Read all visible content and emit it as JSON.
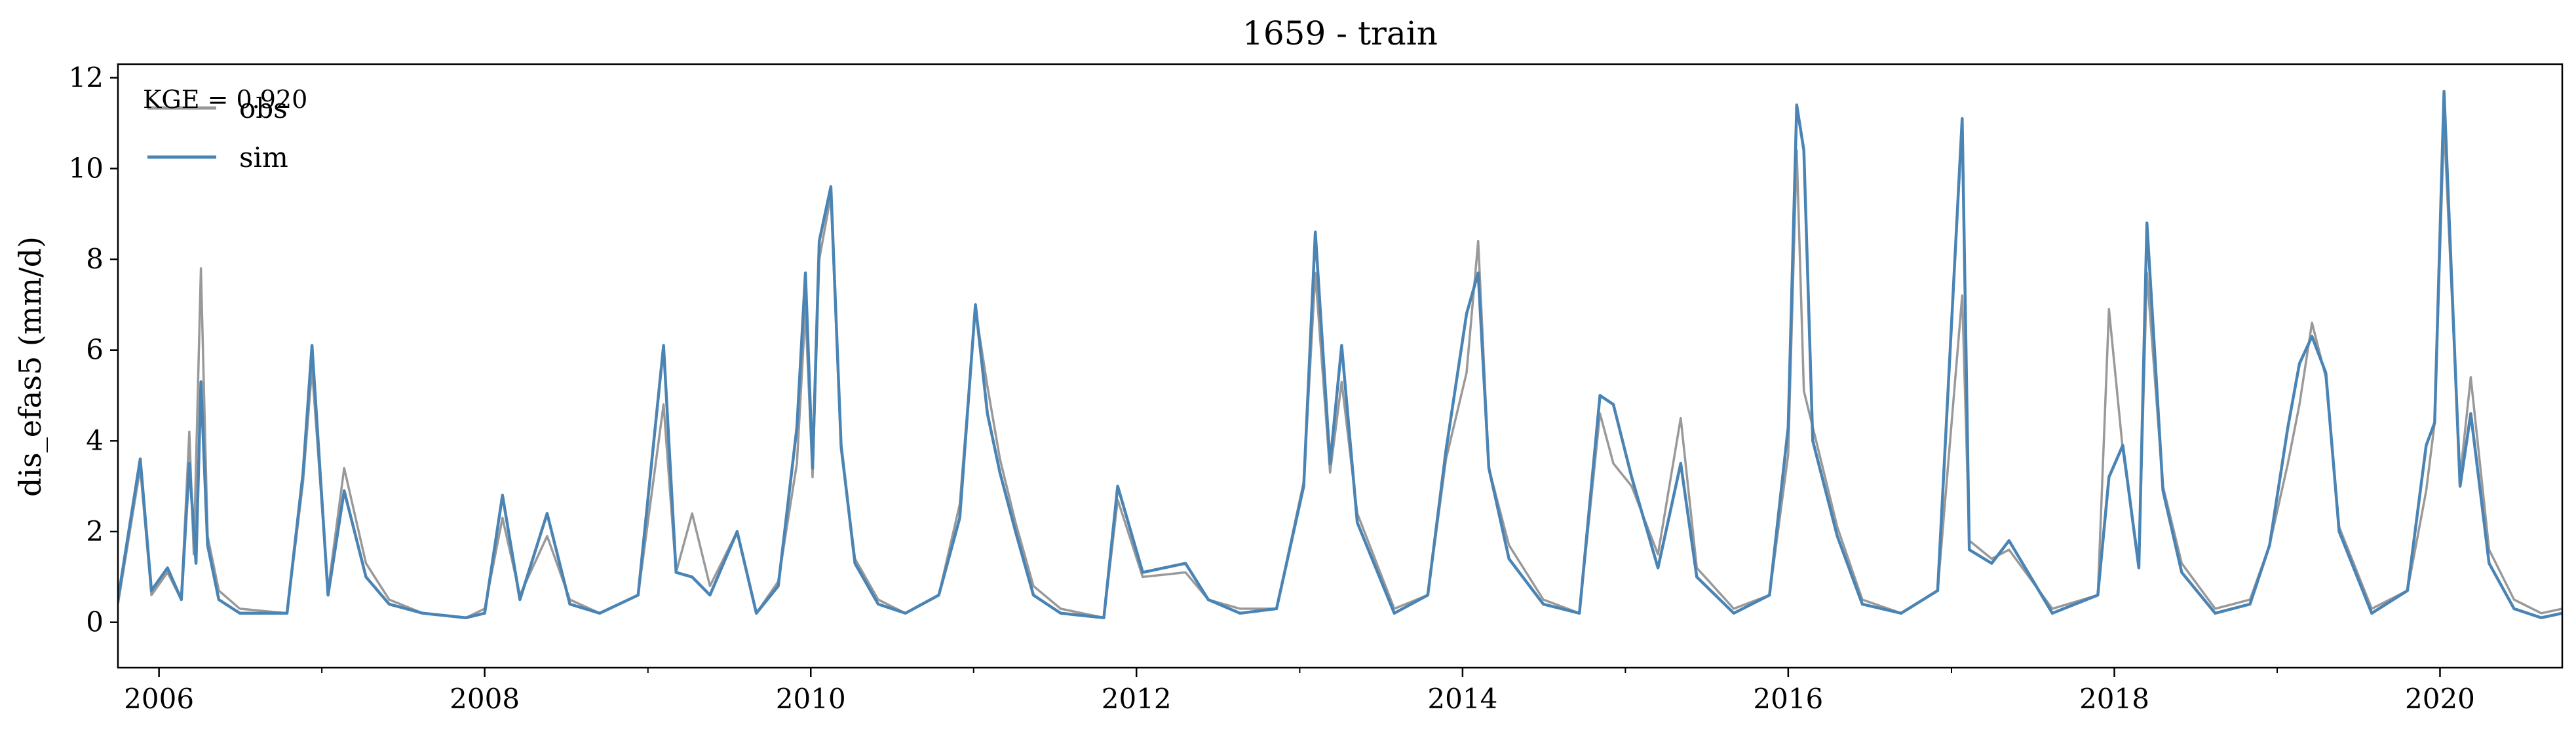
{
  "chart_data": {
    "type": "line",
    "title": "1659 - train",
    "xlabel": "",
    "ylabel": "dis_efas5 (mm/d)",
    "annotation": "KGE = 0.920",
    "xlim": [
      "2005-10-01",
      "2020-10-01"
    ],
    "ylim": [
      -1,
      12.3
    ],
    "x_ticks": [
      "2006",
      "2008",
      "2010",
      "2012",
      "2014",
      "2016",
      "2018",
      "2020"
    ],
    "x_tick_dates": [
      "2006-01-01",
      "2008-01-01",
      "2010-01-01",
      "2012-01-01",
      "2014-01-01",
      "2016-01-01",
      "2018-01-01",
      "2020-01-01"
    ],
    "y_ticks": [
      0,
      2,
      4,
      6,
      8,
      10,
      12
    ],
    "y_tick_labels": [
      "0",
      "2",
      "4",
      "6",
      "8",
      "10",
      "12"
    ],
    "grid": false,
    "legend_position": "top-left",
    "series": [
      {
        "name": "obs",
        "color": "#999999",
        "x": [
          "2005-10-01",
          "2005-11-20",
          "2005-12-15",
          "2006-01-20",
          "2006-02-20",
          "2006-03-10",
          "2006-03-20",
          "2006-04-05",
          "2006-04-20",
          "2006-05-15",
          "2006-07-01",
          "2006-10-15",
          "2006-11-20",
          "2006-12-10",
          "2007-01-15",
          "2007-02-20",
          "2007-04-10",
          "2007-06-01",
          "2007-08-15",
          "2007-11-20",
          "2008-01-01",
          "2008-02-10",
          "2008-03-20",
          "2008-05-20",
          "2008-07-10",
          "2008-09-15",
          "2008-12-10",
          "2009-02-05",
          "2009-03-05",
          "2009-04-10",
          "2009-05-20",
          "2009-07-20",
          "2009-09-01",
          "2009-10-20",
          "2009-12-01",
          "2009-12-20",
          "2010-01-05",
          "2010-01-20",
          "2010-02-15",
          "2010-03-10",
          "2010-04-10",
          "2010-06-01",
          "2010-08-01",
          "2010-10-15",
          "2010-12-01",
          "2011-01-05",
          "2011-02-01",
          "2011-03-01",
          "2011-04-05",
          "2011-05-15",
          "2011-07-15",
          "2011-10-20",
          "2011-11-20",
          "2012-01-15",
          "2012-04-20",
          "2012-06-10",
          "2012-08-20",
          "2012-11-10",
          "2013-01-10",
          "2013-02-05",
          "2013-03-10",
          "2013-04-05",
          "2013-05-10",
          "2013-08-01",
          "2013-10-15",
          "2013-11-25",
          "2014-01-10",
          "2014-02-05",
          "2014-03-01",
          "2014-04-15",
          "2014-07-01",
          "2014-09-20",
          "2014-11-05",
          "2014-12-05",
          "2015-01-15",
          "2015-03-15",
          "2015-05-05",
          "2015-06-10",
          "2015-09-01",
          "2015-11-20",
          "2016-01-01",
          "2016-01-20",
          "2016-02-05",
          "2016-02-25",
          "2016-04-20",
          "2016-06-15",
          "2016-09-10",
          "2016-12-01",
          "2017-01-25",
          "2017-02-10",
          "2017-04-01",
          "2017-05-10",
          "2017-08-15",
          "2017-11-25",
          "2017-12-20",
          "2018-01-20",
          "2018-02-25",
          "2018-03-15",
          "2018-04-20",
          "2018-06-01",
          "2018-08-15",
          "2018-11-01",
          "2018-12-15",
          "2019-01-25",
          "2019-02-20",
          "2019-03-20",
          "2019-04-20",
          "2019-05-20",
          "2019-08-01",
          "2019-10-20",
          "2019-12-01",
          "2019-12-20",
          "2020-01-10",
          "2020-02-15",
          "2020-03-10",
          "2020-04-20",
          "2020-06-15",
          "2020-08-15",
          "2020-10-01"
        ],
        "values": [
          0.4,
          3.4,
          0.6,
          1.1,
          0.5,
          4.2,
          1.5,
          7.8,
          1.9,
          0.7,
          0.3,
          0.2,
          3.1,
          5.6,
          0.7,
          3.4,
          1.3,
          0.5,
          0.2,
          0.1,
          0.3,
          2.3,
          0.6,
          1.9,
          0.5,
          0.2,
          0.6,
          4.8,
          1.1,
          2.4,
          0.8,
          2.0,
          0.2,
          0.9,
          3.5,
          6.9,
          3.2,
          8.0,
          9.4,
          3.8,
          1.4,
          0.5,
          0.2,
          0.6,
          2.6,
          6.9,
          5.2,
          3.6,
          2.2,
          0.8,
          0.3,
          0.1,
          2.7,
          1.0,
          1.1,
          0.5,
          0.3,
          0.3,
          3.1,
          7.7,
          3.3,
          5.3,
          2.4,
          0.3,
          0.6,
          3.6,
          5.5,
          8.4,
          3.4,
          1.7,
          0.5,
          0.2,
          4.6,
          3.5,
          3.0,
          1.5,
          4.5,
          1.2,
          0.3,
          0.6,
          3.7,
          10.4,
          5.1,
          4.3,
          2.1,
          0.5,
          0.2,
          0.7,
          7.2,
          1.8,
          1.4,
          1.6,
          0.3,
          0.6,
          6.9,
          3.8,
          1.3,
          7.7,
          3.0,
          1.3,
          0.3,
          0.5,
          1.7,
          3.5,
          4.8,
          6.6,
          5.4,
          2.1,
          0.3,
          0.7,
          2.9,
          4.4,
          11.0,
          3.2,
          5.4,
          1.6,
          0.5,
          0.2,
          0.3
        ]
      },
      {
        "name": "sim",
        "color": "#4a84b4",
        "x": [
          "2005-10-01",
          "2005-11-20",
          "2005-12-15",
          "2006-01-20",
          "2006-02-20",
          "2006-03-10",
          "2006-03-25",
          "2006-04-05",
          "2006-04-20",
          "2006-05-15",
          "2006-07-01",
          "2006-10-15",
          "2006-11-20",
          "2006-12-10",
          "2007-01-15",
          "2007-02-20",
          "2007-04-10",
          "2007-06-01",
          "2007-08-15",
          "2007-11-20",
          "2008-01-01",
          "2008-02-10",
          "2008-03-20",
          "2008-05-20",
          "2008-07-10",
          "2008-09-15",
          "2008-12-10",
          "2009-02-05",
          "2009-03-05",
          "2009-04-10",
          "2009-05-20",
          "2009-07-20",
          "2009-09-01",
          "2009-10-20",
          "2009-12-01",
          "2009-12-20",
          "2010-01-05",
          "2010-01-20",
          "2010-02-15",
          "2010-03-10",
          "2010-04-10",
          "2010-06-01",
          "2010-08-01",
          "2010-10-15",
          "2010-12-01",
          "2011-01-05",
          "2011-02-01",
          "2011-03-01",
          "2011-04-05",
          "2011-05-15",
          "2011-07-15",
          "2011-10-20",
          "2011-11-20",
          "2012-01-15",
          "2012-04-20",
          "2012-06-10",
          "2012-08-20",
          "2012-11-10",
          "2013-01-10",
          "2013-02-05",
          "2013-03-10",
          "2013-04-05",
          "2013-05-10",
          "2013-08-01",
          "2013-10-15",
          "2013-11-25",
          "2014-01-10",
          "2014-02-05",
          "2014-03-01",
          "2014-04-15",
          "2014-07-01",
          "2014-09-20",
          "2014-11-05",
          "2014-12-05",
          "2015-01-15",
          "2015-03-15",
          "2015-05-05",
          "2015-06-10",
          "2015-09-01",
          "2015-11-20",
          "2016-01-01",
          "2016-01-20",
          "2016-02-05",
          "2016-02-25",
          "2016-04-20",
          "2016-06-15",
          "2016-09-10",
          "2016-12-01",
          "2017-01-25",
          "2017-02-10",
          "2017-04-01",
          "2017-05-10",
          "2017-08-15",
          "2017-11-25",
          "2017-12-20",
          "2018-01-20",
          "2018-02-25",
          "2018-03-15",
          "2018-04-20",
          "2018-06-01",
          "2018-08-15",
          "2018-11-01",
          "2018-12-15",
          "2019-01-25",
          "2019-02-20",
          "2019-03-20",
          "2019-04-20",
          "2019-05-20",
          "2019-08-01",
          "2019-10-20",
          "2019-12-01",
          "2019-12-20",
          "2020-01-10",
          "2020-02-15",
          "2020-03-10",
          "2020-04-20",
          "2020-06-15",
          "2020-08-15",
          "2020-10-01"
        ],
        "values": [
          0.5,
          3.6,
          0.7,
          1.2,
          0.5,
          3.5,
          1.3,
          5.3,
          1.7,
          0.5,
          0.2,
          0.2,
          3.3,
          6.1,
          0.6,
          2.9,
          1.0,
          0.4,
          0.2,
          0.1,
          0.2,
          2.8,
          0.5,
          2.4,
          0.4,
          0.2,
          0.6,
          6.1,
          1.1,
          1.0,
          0.6,
          2.0,
          0.2,
          0.8,
          4.3,
          7.7,
          3.4,
          8.4,
          9.6,
          3.9,
          1.3,
          0.4,
          0.2,
          0.6,
          2.3,
          7.0,
          4.6,
          3.3,
          2.0,
          0.6,
          0.2,
          0.1,
          3.0,
          1.1,
          1.3,
          0.5,
          0.2,
          0.3,
          3.0,
          8.6,
          3.5,
          6.1,
          2.2,
          0.2,
          0.6,
          3.8,
          6.8,
          7.7,
          3.4,
          1.4,
          0.4,
          0.2,
          5.0,
          4.8,
          3.2,
          1.2,
          3.5,
          1.0,
          0.2,
          0.6,
          4.3,
          11.4,
          10.4,
          4.0,
          1.9,
          0.4,
          0.2,
          0.7,
          11.1,
          1.6,
          1.3,
          1.8,
          0.2,
          0.6,
          3.2,
          3.9,
          1.2,
          8.8,
          2.9,
          1.1,
          0.2,
          0.4,
          1.7,
          4.3,
          5.7,
          6.3,
          5.5,
          2.0,
          0.2,
          0.7,
          3.9,
          4.4,
          11.7,
          3.0,
          4.6,
          1.3,
          0.3,
          0.1,
          0.2
        ]
      }
    ]
  }
}
